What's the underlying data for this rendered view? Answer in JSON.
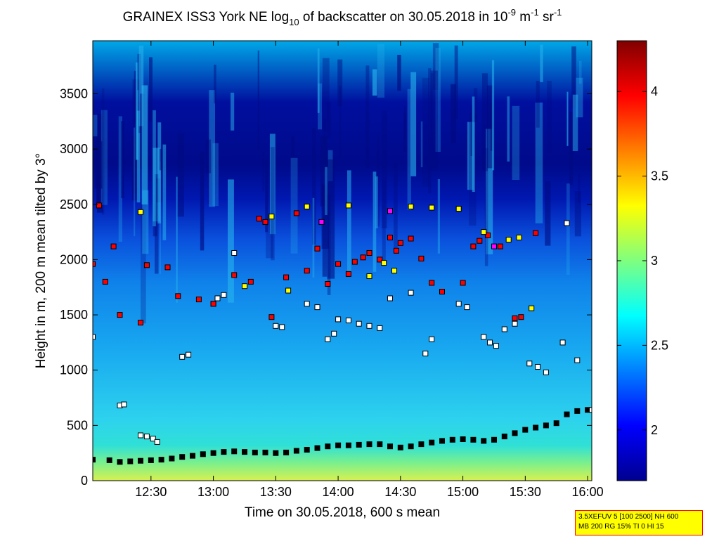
{
  "chart_data": {
    "type": "heatmap",
    "title": {
      "part1": "GRAINEX ISS3 York NE log",
      "sub1": "10",
      "part2": " of backscatter on 30.05.2018 in 10",
      "sup1": "-9",
      "part3": " m",
      "sup2": "-1",
      "part4": " sr",
      "sup3": "-1"
    },
    "xlabel": "Time on 30.05.2018, 600 s mean",
    "ylabel": "Height in m, 200 m mean tilted by 3°",
    "x_ticks": [
      "12:30",
      "13:00",
      "13:30",
      "14:00",
      "14:30",
      "15:00",
      "15:30",
      "16:00"
    ],
    "y_ticks": [
      "0",
      "500",
      "1000",
      "1500",
      "2000",
      "2500",
      "3000",
      "3500"
    ],
    "xlim": [
      "12:02",
      "16:02"
    ],
    "ylim": [
      0,
      3980
    ],
    "colorbar": {
      "ticks": [
        "2",
        "2.5",
        "3",
        "3.5",
        "4"
      ],
      "range": [
        1.7,
        4.3
      ],
      "colormap": "jet"
    },
    "series": [
      {
        "marker_fill": "#000000",
        "points": [
          [
            "12:02",
            190
          ],
          [
            "12:10",
            185
          ],
          [
            "12:15",
            170
          ],
          [
            "12:20",
            175
          ],
          [
            "12:25",
            180
          ],
          [
            "12:30",
            185
          ],
          [
            "12:35",
            190
          ],
          [
            "12:40",
            200
          ],
          [
            "12:45",
            215
          ],
          [
            "12:50",
            225
          ],
          [
            "12:55",
            240
          ],
          [
            "13:00",
            250
          ],
          [
            "13:05",
            260
          ],
          [
            "13:10",
            265
          ],
          [
            "13:15",
            260
          ],
          [
            "13:20",
            255
          ],
          [
            "13:25",
            255
          ],
          [
            "13:30",
            250
          ],
          [
            "13:35",
            255
          ],
          [
            "13:40",
            270
          ],
          [
            "13:45",
            280
          ],
          [
            "13:50",
            295
          ],
          [
            "13:55",
            310
          ],
          [
            "14:00",
            320
          ],
          [
            "14:05",
            320
          ],
          [
            "14:10",
            325
          ],
          [
            "14:15",
            330
          ],
          [
            "14:20",
            330
          ],
          [
            "14:25",
            310
          ],
          [
            "14:30",
            300
          ],
          [
            "14:35",
            310
          ],
          [
            "14:40",
            330
          ],
          [
            "14:45",
            345
          ],
          [
            "14:50",
            360
          ],
          [
            "14:55",
            370
          ],
          [
            "15:00",
            375
          ],
          [
            "15:05",
            370
          ],
          [
            "15:10",
            360
          ],
          [
            "15:15",
            370
          ],
          [
            "15:20",
            400
          ],
          [
            "15:25",
            430
          ],
          [
            "15:30",
            460
          ],
          [
            "15:35",
            480
          ],
          [
            "15:40",
            500
          ],
          [
            "15:45",
            520
          ],
          [
            "15:50",
            600
          ],
          [
            "15:55",
            630
          ],
          [
            "16:00",
            640
          ],
          [
            "16:02",
            640
          ]
        ]
      },
      {
        "marker_fill": "#ffffff",
        "points": [
          [
            "12:02",
            1300
          ],
          [
            "12:15",
            680
          ],
          [
            "12:17",
            690
          ],
          [
            "12:25",
            410
          ],
          [
            "12:28",
            400
          ],
          [
            "12:31",
            380
          ],
          [
            "12:33",
            350
          ],
          [
            "12:45",
            1120
          ],
          [
            "12:48",
            1140
          ],
          [
            "13:00",
            1600
          ],
          [
            "13:02",
            1650
          ],
          [
            "13:05",
            1680
          ],
          [
            "13:10",
            2060
          ],
          [
            "13:30",
            1400
          ],
          [
            "13:33",
            1390
          ],
          [
            "13:45",
            1600
          ],
          [
            "13:50",
            1570
          ],
          [
            "13:55",
            1280
          ],
          [
            "13:58",
            1330
          ],
          [
            "14:00",
            1460
          ],
          [
            "14:05",
            1450
          ],
          [
            "14:10",
            1420
          ],
          [
            "14:15",
            1400
          ],
          [
            "14:20",
            1380
          ],
          [
            "14:25",
            1650
          ],
          [
            "14:35",
            1700
          ],
          [
            "14:42",
            1150
          ],
          [
            "14:45",
            1280
          ],
          [
            "14:58",
            1600
          ],
          [
            "15:02",
            1570
          ],
          [
            "15:10",
            1300
          ],
          [
            "15:13",
            1250
          ],
          [
            "15:16",
            1220
          ],
          [
            "15:20",
            1370
          ],
          [
            "15:25",
            1420
          ],
          [
            "15:32",
            1060
          ],
          [
            "15:36",
            1030
          ],
          [
            "15:40",
            980
          ],
          [
            "15:48",
            1250
          ],
          [
            "15:55",
            1090
          ],
          [
            "15:50",
            2330
          ],
          [
            "16:02",
            640
          ]
        ]
      },
      {
        "marker_fill": "#ff0000",
        "points": [
          [
            "12:02",
            1960
          ],
          [
            "12:05",
            2490
          ],
          [
            "12:08",
            1800
          ],
          [
            "12:12",
            2120
          ],
          [
            "12:15",
            1500
          ],
          [
            "12:25",
            1430
          ],
          [
            "12:28",
            1950
          ],
          [
            "12:38",
            1930
          ],
          [
            "12:43",
            1670
          ],
          [
            "12:53",
            1640
          ],
          [
            "13:00",
            1600
          ],
          [
            "13:10",
            1860
          ],
          [
            "13:18",
            1800
          ],
          [
            "13:22",
            2370
          ],
          [
            "13:25",
            2340
          ],
          [
            "13:28",
            1480
          ],
          [
            "13:35",
            1840
          ],
          [
            "13:40",
            2420
          ],
          [
            "13:45",
            1900
          ],
          [
            "13:50",
            2100
          ],
          [
            "13:55",
            1780
          ],
          [
            "14:00",
            1960
          ],
          [
            "14:05",
            1870
          ],
          [
            "14:08",
            1980
          ],
          [
            "14:12",
            2020
          ],
          [
            "14:15",
            2060
          ],
          [
            "14:20",
            2000
          ],
          [
            "14:25",
            2200
          ],
          [
            "14:28",
            2080
          ],
          [
            "14:30",
            2150
          ],
          [
            "14:35",
            2190
          ],
          [
            "14:40",
            2010
          ],
          [
            "14:45",
            1790
          ],
          [
            "14:50",
            1710
          ],
          [
            "15:00",
            1790
          ],
          [
            "15:05",
            2120
          ],
          [
            "15:08",
            2170
          ],
          [
            "15:12",
            2220
          ],
          [
            "15:18",
            2120
          ],
          [
            "15:25",
            1470
          ],
          [
            "15:28",
            1480
          ],
          [
            "15:35",
            2240
          ]
        ]
      },
      {
        "marker_fill": "#ffff00",
        "points": [
          [
            "12:25",
            2430
          ],
          [
            "13:15",
            1760
          ],
          [
            "13:28",
            2390
          ],
          [
            "13:36",
            1720
          ],
          [
            "13:45",
            2480
          ],
          [
            "14:05",
            2490
          ],
          [
            "14:15",
            1850
          ],
          [
            "14:22",
            1970
          ],
          [
            "14:27",
            1900
          ],
          [
            "14:35",
            2480
          ],
          [
            "14:45",
            2470
          ],
          [
            "14:58",
            2460
          ],
          [
            "15:10",
            2250
          ],
          [
            "15:22",
            2180
          ],
          [
            "15:27",
            2200
          ],
          [
            "15:33",
            1560
          ]
        ]
      },
      {
        "marker_fill": "#ff00ff",
        "points": [
          [
            "13:52",
            2340
          ],
          [
            "14:25",
            2440
          ],
          [
            "15:15",
            2120
          ]
        ]
      }
    ]
  },
  "params_box": {
    "line1": "3.5XEFUV 5 [100 2500] NH 600",
    "line2": "MB 200 RG 15% TI 0 HI 15"
  }
}
